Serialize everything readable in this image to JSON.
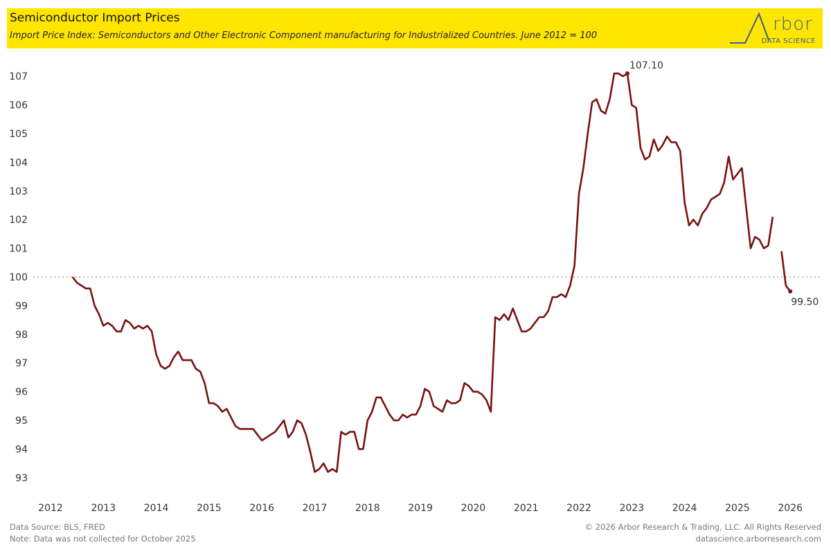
{
  "header": {
    "title": "Semiconductor Import Prices",
    "subtitle": "Import Price Index: Semiconductors and Other Electronic Component manufacturing for Industrialized Countries. June 2012 = 100",
    "logo_word": "rbor",
    "logo_tagline": "DATA SCIENCE",
    "logo_lettering": "Arbor DATA SCIENCE"
  },
  "footer": {
    "source": "Data Source: BLS, FRED",
    "note": "Note: Data was not collected for October 2025",
    "copyright": "© 2026 Arbor Research & Trading, LLC. All Rights Reserved",
    "website": "datascience.arborresearch.com"
  },
  "colors": {
    "header_bg": "#ffe600",
    "line": "#7a1010",
    "reference_line": "#aaaaaa",
    "logo": "#3a5e8c"
  },
  "chart_data": {
    "type": "line",
    "title": "Semiconductor Import Prices",
    "xlabel": "",
    "ylabel": "",
    "xlim": [
      2012,
      2026.2
    ],
    "ylim": [
      92.7,
      107.4
    ],
    "y_ticks": [
      107,
      106,
      105,
      104,
      103,
      102,
      101,
      100,
      99,
      98,
      97,
      96,
      95,
      94,
      93
    ],
    "x_ticks": [
      "2012",
      "2013",
      "2014",
      "2015",
      "2016",
      "2017",
      "2018",
      "2019",
      "2020",
      "2021",
      "2022",
      "2023",
      "2024",
      "2025",
      "2026"
    ],
    "reference_line": {
      "value": 100,
      "style": "dotted"
    },
    "grid": false,
    "legend": "none",
    "annotations": [
      {
        "label": "107.10",
        "date": "2022-12",
        "value": 107.1
      },
      {
        "label": "99.50",
        "date": "2026-01",
        "value": 99.5
      }
    ],
    "series": [
      {
        "name": "Import Price Index",
        "start": "2012-06",
        "frequency": "monthly",
        "gaps": [
          "2025-10"
        ],
        "values": [
          100.0,
          99.8,
          99.7,
          99.6,
          99.6,
          99.0,
          98.7,
          98.3,
          98.4,
          98.3,
          98.1,
          98.1,
          98.5,
          98.4,
          98.2,
          98.3,
          98.2,
          98.3,
          98.1,
          97.3,
          96.9,
          96.8,
          96.9,
          97.2,
          97.4,
          97.1,
          97.1,
          97.1,
          96.8,
          96.7,
          96.3,
          95.6,
          95.6,
          95.5,
          95.3,
          95.4,
          95.1,
          94.8,
          94.7,
          94.7,
          94.7,
          94.7,
          94.5,
          94.3,
          94.4,
          94.5,
          94.6,
          94.8,
          95.0,
          94.4,
          94.6,
          95.0,
          94.9,
          94.5,
          93.9,
          93.2,
          93.3,
          93.5,
          93.2,
          93.3,
          93.2,
          94.6,
          94.5,
          94.6,
          94.6,
          94.0,
          94.0,
          95.0,
          95.3,
          95.8,
          95.8,
          95.5,
          95.2,
          95.0,
          95.0,
          95.2,
          95.1,
          95.2,
          95.2,
          95.5,
          96.1,
          96.0,
          95.5,
          95.4,
          95.3,
          95.7,
          95.6,
          95.6,
          95.7,
          96.3,
          96.2,
          96.0,
          96.0,
          95.9,
          95.7,
          95.3,
          98.6,
          98.5,
          98.7,
          98.5,
          98.9,
          98.5,
          98.1,
          98.1,
          98.2,
          98.4,
          98.6,
          98.6,
          98.8,
          99.3,
          99.3,
          99.4,
          99.3,
          99.7,
          100.4,
          102.9,
          103.8,
          105.0,
          106.1,
          106.2,
          105.8,
          105.7,
          106.2,
          107.1,
          107.1,
          107.0,
          107.1,
          106.0,
          105.9,
          104.5,
          104.1,
          104.2,
          104.8,
          104.4,
          104.6,
          104.9,
          104.7,
          104.7,
          104.4,
          102.6,
          101.8,
          102.0,
          101.8,
          102.2,
          102.4,
          102.7,
          102.8,
          102.9,
          103.3,
          104.2,
          103.4,
          103.6,
          103.8,
          102.4,
          101.0,
          101.4,
          101.3,
          101.0,
          101.1,
          102.1,
          null,
          100.9,
          99.7,
          99.5
        ]
      }
    ]
  }
}
